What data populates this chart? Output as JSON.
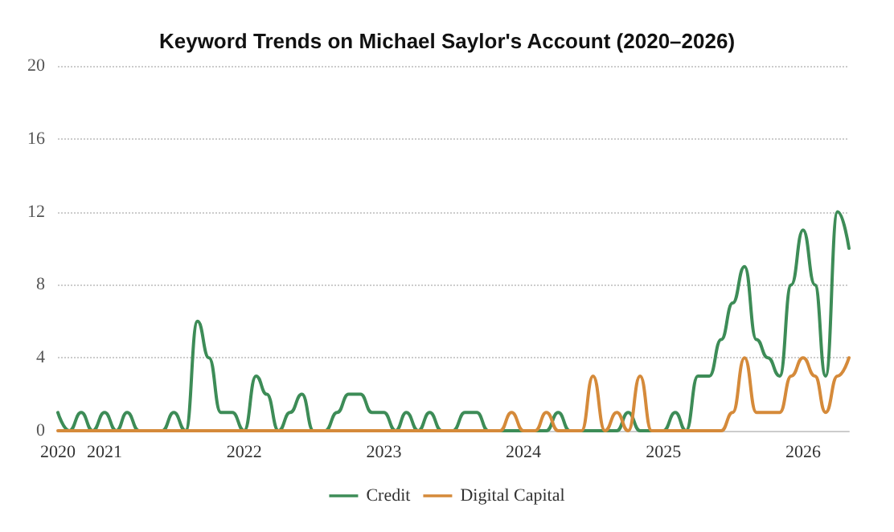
{
  "chart_data": {
    "type": "line",
    "title": "Keyword Trends on Michael Saylor's Account (2020–2026)",
    "x": [
      "2020-09",
      "2020-10",
      "2020-11",
      "2020-12",
      "2021-01",
      "2021-02",
      "2021-03",
      "2021-04",
      "2021-05",
      "2021-06",
      "2021-07",
      "2021-08",
      "2021-09",
      "2021-10",
      "2021-11",
      "2021-12",
      "2022-01",
      "2022-02",
      "2022-03",
      "2022-04",
      "2022-05",
      "2022-06",
      "2022-07",
      "2022-08",
      "2022-09",
      "2022-10",
      "2022-11",
      "2022-12",
      "2023-01",
      "2023-02",
      "2023-03",
      "2023-04",
      "2023-05",
      "2023-06",
      "2023-07",
      "2023-08",
      "2023-09",
      "2023-10",
      "2023-11",
      "2023-12",
      "2024-01",
      "2024-02",
      "2024-03",
      "2024-04",
      "2024-05",
      "2024-06",
      "2024-07",
      "2024-08",
      "2024-09",
      "2024-10",
      "2024-11",
      "2024-12",
      "2025-01",
      "2025-02",
      "2025-03",
      "2025-04",
      "2025-05",
      "2025-06",
      "2025-07",
      "2025-08",
      "2025-09",
      "2025-10",
      "2025-11",
      "2025-12",
      "2026-01",
      "2026-02",
      "2026-03",
      "2026-04",
      "2026-05"
    ],
    "series": [
      {
        "name": "Credit",
        "color": "#3d8c57",
        "values": [
          1,
          0,
          1,
          0,
          1,
          0,
          1,
          0,
          0,
          0,
          1,
          0,
          6,
          4,
          1,
          1,
          0,
          3,
          2,
          0,
          1,
          2,
          0,
          0,
          1,
          2,
          2,
          1,
          1,
          0,
          1,
          0,
          1,
          0,
          0,
          1,
          1,
          0,
          0,
          0,
          0,
          0,
          0,
          1,
          0,
          0,
          0,
          0,
          0,
          1,
          0,
          0,
          0,
          1,
          0,
          3,
          3,
          5,
          7,
          9,
          5,
          4,
          3,
          8,
          11,
          8,
          3,
          12,
          10
        ]
      },
      {
        "name": "Digital Capital",
        "color": "#d58a3a",
        "values": [
          0,
          0,
          0,
          0,
          0,
          0,
          0,
          0,
          0,
          0,
          0,
          0,
          0,
          0,
          0,
          0,
          0,
          0,
          0,
          0,
          0,
          0,
          0,
          0,
          0,
          0,
          0,
          0,
          0,
          0,
          0,
          0,
          0,
          0,
          0,
          0,
          0,
          0,
          0,
          1,
          0,
          0,
          1,
          0,
          0,
          0,
          3,
          0,
          1,
          0,
          3,
          0,
          0,
          0,
          0,
          0,
          0,
          0,
          1,
          4,
          1,
          1,
          1,
          3,
          4,
          3,
          1,
          3,
          4
        ]
      }
    ],
    "xlim": [
      "2020-09",
      "2026-05"
    ],
    "xticks": [
      {
        "value": "2020-09",
        "label": "2020"
      },
      {
        "value": "2021-01",
        "label": "2021"
      },
      {
        "value": "2022-01",
        "label": "2022"
      },
      {
        "value": "2023-01",
        "label": "2023"
      },
      {
        "value": "2024-01",
        "label": "2024"
      },
      {
        "value": "2025-01",
        "label": "2025"
      },
      {
        "value": "2026-01",
        "label": "2026"
      }
    ],
    "ylim": [
      0,
      20
    ],
    "yticks": [
      0,
      4,
      8,
      12,
      16,
      20
    ],
    "grid": "y",
    "legend": "bottom",
    "marker": "none",
    "line_style": "solid"
  }
}
